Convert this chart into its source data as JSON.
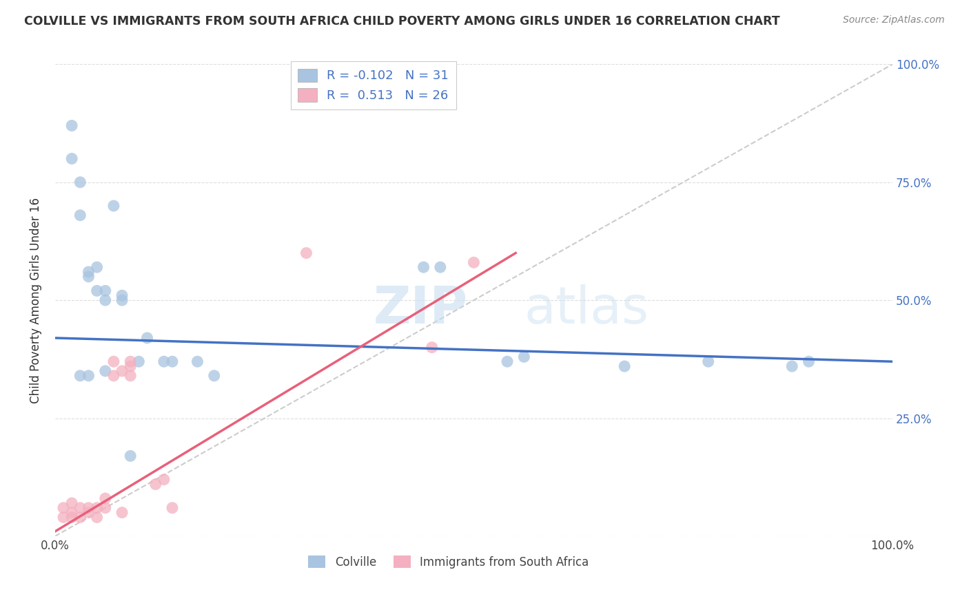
{
  "title": "COLVILLE VS IMMIGRANTS FROM SOUTH AFRICA CHILD POVERTY AMONG GIRLS UNDER 16 CORRELATION CHART",
  "source": "Source: ZipAtlas.com",
  "ylabel": "Child Poverty Among Girls Under 16",
  "watermark": "ZIPatlas",
  "blue_R": -0.102,
  "blue_N": 31,
  "pink_R": 0.513,
  "pink_N": 26,
  "blue_color": "#a8c4e0",
  "pink_color": "#f4b0c0",
  "blue_line_color": "#4472c4",
  "pink_line_color": "#e8607a",
  "diagonal_color": "#cccccc",
  "legend_text_color": "#4472c4",
  "title_color": "#333333",
  "blue_points_x": [
    0.02,
    0.02,
    0.03,
    0.03,
    0.04,
    0.04,
    0.05,
    0.05,
    0.06,
    0.06,
    0.07,
    0.08,
    0.08,
    0.1,
    0.11,
    0.13,
    0.14,
    0.17,
    0.19,
    0.44,
    0.46,
    0.54,
    0.56,
    0.68,
    0.78,
    0.88,
    0.9,
    0.03,
    0.04,
    0.06,
    0.09
  ],
  "blue_points_y": [
    0.87,
    0.8,
    0.75,
    0.68,
    0.55,
    0.56,
    0.52,
    0.57,
    0.5,
    0.52,
    0.7,
    0.5,
    0.51,
    0.37,
    0.42,
    0.37,
    0.37,
    0.37,
    0.34,
    0.57,
    0.57,
    0.37,
    0.38,
    0.36,
    0.37,
    0.36,
    0.37,
    0.34,
    0.34,
    0.35,
    0.17
  ],
  "pink_points_x": [
    0.01,
    0.01,
    0.02,
    0.02,
    0.02,
    0.03,
    0.03,
    0.04,
    0.04,
    0.05,
    0.05,
    0.06,
    0.06,
    0.07,
    0.07,
    0.08,
    0.08,
    0.09,
    0.09,
    0.09,
    0.12,
    0.13,
    0.14,
    0.3,
    0.45,
    0.5
  ],
  "pink_points_y": [
    0.04,
    0.06,
    0.04,
    0.05,
    0.07,
    0.04,
    0.06,
    0.05,
    0.06,
    0.04,
    0.06,
    0.06,
    0.08,
    0.34,
    0.37,
    0.35,
    0.05,
    0.34,
    0.36,
    0.37,
    0.11,
    0.12,
    0.06,
    0.6,
    0.4,
    0.58
  ],
  "blue_line_x0": 0.0,
  "blue_line_y0": 0.42,
  "blue_line_x1": 1.0,
  "blue_line_y1": 0.37,
  "pink_line_x0": 0.0,
  "pink_line_y0": 0.01,
  "pink_line_x1": 0.55,
  "pink_line_y1": 0.6,
  "xlim": [
    0.0,
    1.0
  ],
  "ylim": [
    0.0,
    1.0
  ],
  "yticks": [
    0.0,
    0.25,
    0.5,
    0.75,
    1.0
  ],
  "right_ytick_labels": [
    "",
    "25.0%",
    "50.0%",
    "75.0%",
    "100.0%"
  ],
  "left_ytick_labels": [
    "",
    "",
    "",
    "",
    ""
  ],
  "xticks": [
    0.0,
    0.25,
    0.5,
    0.75,
    1.0
  ],
  "xtick_labels": [
    "0.0%",
    "",
    "",
    "",
    "100.0%"
  ]
}
